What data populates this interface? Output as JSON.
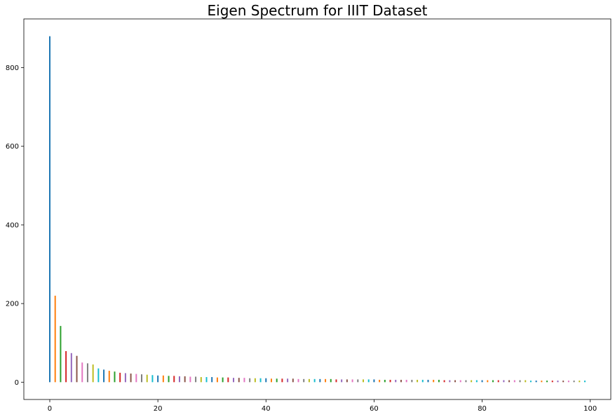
{
  "chart_data": {
    "type": "bar",
    "title": "Eigen Spectrum for IIIT Dataset",
    "xlabel": "",
    "ylabel": "",
    "xlim": [
      -4.8,
      103.8
    ],
    "ylim": [
      -44,
      924
    ],
    "xticks": [
      0,
      20,
      40,
      60,
      80,
      100
    ],
    "yticks": [
      0,
      200,
      400,
      600,
      800
    ],
    "grid": false,
    "x": [
      0,
      1,
      2,
      3,
      4,
      5,
      6,
      7,
      8,
      9,
      10,
      11,
      12,
      13,
      14,
      15,
      16,
      17,
      18,
      19,
      20,
      21,
      22,
      23,
      24,
      25,
      26,
      27,
      28,
      29,
      30,
      31,
      32,
      33,
      34,
      35,
      36,
      37,
      38,
      39,
      40,
      41,
      42,
      43,
      44,
      45,
      46,
      47,
      48,
      49,
      50,
      51,
      52,
      53,
      54,
      55,
      56,
      57,
      58,
      59,
      60,
      61,
      62,
      63,
      64,
      65,
      66,
      67,
      68,
      69,
      70,
      71,
      72,
      73,
      74,
      75,
      76,
      77,
      78,
      79,
      80,
      81,
      82,
      83,
      84,
      85,
      86,
      87,
      88,
      89,
      90,
      91,
      92,
      93,
      94,
      95,
      96,
      97,
      98,
      99
    ],
    "values": [
      880,
      220,
      143,
      79,
      74,
      67,
      50,
      48,
      45,
      35,
      32,
      29,
      27,
      24,
      23,
      22,
      21,
      20,
      19,
      18,
      17,
      17,
      16,
      16,
      15,
      15,
      14,
      14,
      13,
      13,
      13,
      12,
      12,
      12,
      11,
      11,
      11,
      10,
      10,
      10,
      10,
      9,
      9,
      9,
      9,
      9,
      8,
      8,
      8,
      8,
      8,
      8,
      8,
      7,
      7,
      7,
      7,
      7,
      7,
      7,
      7,
      6,
      6,
      6,
      6,
      6,
      6,
      6,
      6,
      6,
      6,
      6,
      6,
      5,
      5,
      5,
      5,
      5,
      5,
      5,
      5,
      5,
      5,
      5,
      5,
      5,
      5,
      5,
      5,
      4,
      4,
      4,
      4,
      4,
      4,
      4,
      4,
      4,
      4,
      4
    ],
    "colors": [
      "#1f77b4",
      "#ff7f0e",
      "#2ca02c",
      "#d62728",
      "#9467bd",
      "#8c564b",
      "#e377c2",
      "#7f7f7f",
      "#bcbd22",
      "#17becf"
    ]
  }
}
